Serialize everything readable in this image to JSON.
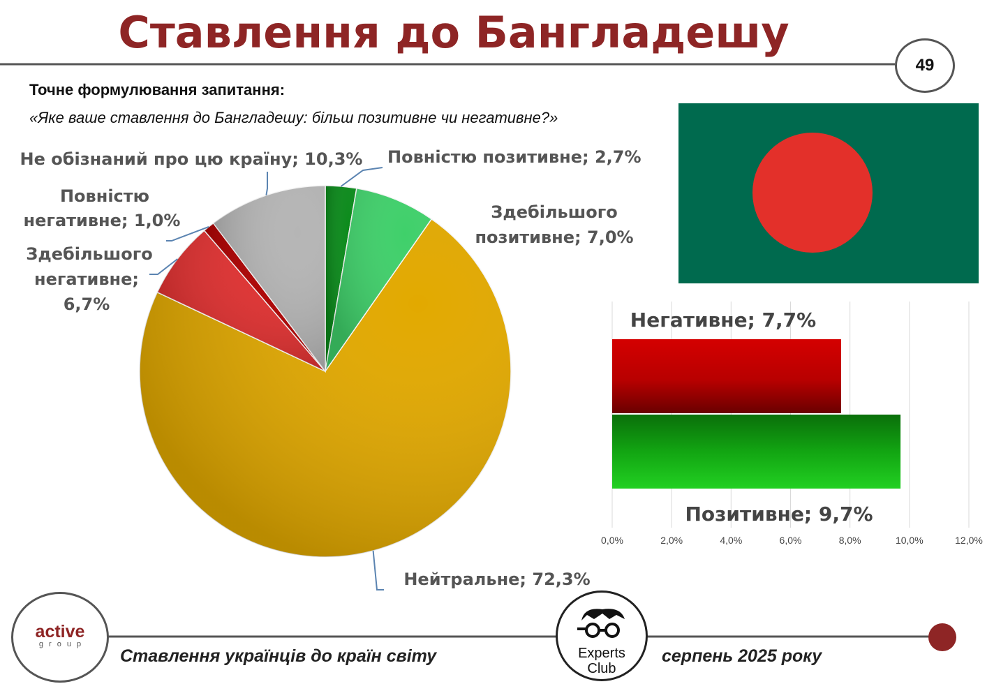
{
  "title": "Ставлення до Бангладешу",
  "page_number": "49",
  "question_label": "Точне формулювання запитання:",
  "question_text": "«Яке ваше ставлення до Бангладешу: більш позитивне чи негативне?»",
  "chart_data": [
    {
      "type": "pie",
      "slices": [
        {
          "label": "Повністю позитивне; 2,7%",
          "value": 2.7,
          "color": "#0a8a1a"
        },
        {
          "label": "Здебільшого позитивне; 7,0%",
          "value": 7.0,
          "color": "#3fd06a"
        },
        {
          "label": "Нейтральне; 72,3%",
          "value": 72.3,
          "color": "#e2a900"
        },
        {
          "label": "Здебільшого негативне; 6,7%",
          "value": 6.7,
          "color": "#e03030"
        },
        {
          "label": "Повністю негативне; 1,0%",
          "value": 1.0,
          "color": "#b00000"
        },
        {
          "label": "Не обізнаний про цю країну; 10,3%",
          "value": 10.3,
          "color": "#b5b5b5"
        }
      ]
    },
    {
      "type": "bar",
      "orientation": "horizontal",
      "categories": [
        "Негативне; 7,7%",
        "Позитивне; 9,7%"
      ],
      "values": [
        7.7,
        9.7
      ],
      "colors": [
        "#c00000",
        "#10b010"
      ],
      "xlim": [
        0,
        12
      ],
      "xticks": [
        "0,0%",
        "2,0%",
        "4,0%",
        "6,0%",
        "8,0%",
        "10,0%",
        "12,0%"
      ],
      "grid": true
    }
  ],
  "footer": {
    "left_text": "Ставлення українців до країн світу",
    "right_text": "серпень 2025 року",
    "logo_active_word": "active",
    "logo_active_sub": "group",
    "logo_experts_word1": "Experts",
    "logo_experts_word2": "Club"
  }
}
